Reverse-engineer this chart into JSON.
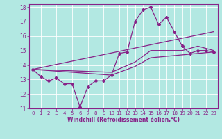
{
  "xlabel": "Windchill (Refroidissement éolien,°C)",
  "xlim": [
    -0.5,
    23.5
  ],
  "ylim": [
    11,
    18.2
  ],
  "yticks": [
    11,
    12,
    13,
    14,
    15,
    16,
    17,
    18
  ],
  "xticks": [
    0,
    1,
    2,
    3,
    4,
    5,
    6,
    7,
    8,
    9,
    10,
    11,
    12,
    13,
    14,
    15,
    16,
    17,
    18,
    19,
    20,
    21,
    22,
    23
  ],
  "background_color": "#b2e8e2",
  "grid_color": "#ffffff",
  "line_color": "#882288",
  "line1_x": [
    0,
    1,
    2,
    3,
    4,
    5,
    6,
    7,
    8,
    9,
    10,
    11,
    12,
    13,
    14,
    15,
    16,
    17,
    18,
    19,
    20,
    21,
    22,
    23
  ],
  "line1_y": [
    13.7,
    13.2,
    12.9,
    13.1,
    12.7,
    12.7,
    11.1,
    12.5,
    12.9,
    12.9,
    13.3,
    14.8,
    14.9,
    17.0,
    17.8,
    18.0,
    16.8,
    17.3,
    16.3,
    15.3,
    14.8,
    15.0,
    15.0,
    14.9
  ],
  "line2_x": [
    0,
    23
  ],
  "line2_y": [
    13.7,
    16.3
  ],
  "line3_x": [
    0,
    10,
    13,
    15,
    19,
    21,
    23
  ],
  "line3_y": [
    13.7,
    13.5,
    14.2,
    15.0,
    15.0,
    15.3,
    15.0
  ],
  "line4_x": [
    0,
    10,
    13,
    15,
    19,
    21,
    23
  ],
  "line4_y": [
    13.7,
    13.3,
    13.9,
    14.5,
    14.7,
    14.8,
    14.9
  ]
}
